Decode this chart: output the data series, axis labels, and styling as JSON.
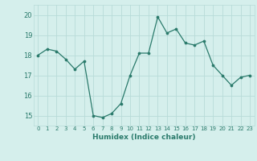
{
  "x": [
    0,
    1,
    2,
    3,
    4,
    5,
    6,
    7,
    8,
    9,
    10,
    11,
    12,
    13,
    14,
    15,
    16,
    17,
    18,
    19,
    20,
    21,
    22,
    23
  ],
  "y": [
    18.0,
    18.3,
    18.2,
    17.8,
    17.3,
    17.7,
    15.0,
    14.9,
    15.1,
    15.6,
    17.0,
    18.1,
    18.1,
    19.9,
    19.1,
    19.3,
    18.6,
    18.5,
    18.7,
    17.5,
    17.0,
    16.5,
    16.9,
    17.0
  ],
  "xlabel": "Humidex (Indice chaleur)",
  "ylim": [
    14.5,
    20.5
  ],
  "yticks": [
    15,
    16,
    17,
    18,
    19,
    20
  ],
  "xticks": [
    0,
    1,
    2,
    3,
    4,
    5,
    6,
    7,
    8,
    9,
    10,
    11,
    12,
    13,
    14,
    15,
    16,
    17,
    18,
    19,
    20,
    21,
    22,
    23
  ],
  "line_color": "#2a7a6b",
  "marker_color": "#2a7a6b",
  "bg_color": "#d5efec",
  "grid_color": "#b8dbd8",
  "label_color": "#2a7a6b"
}
